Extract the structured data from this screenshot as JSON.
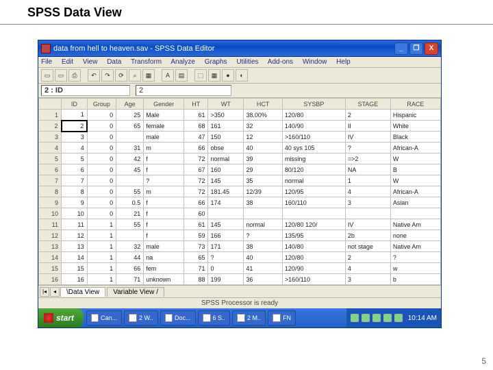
{
  "slide": {
    "title": "SPSS Data View",
    "page_number": "5"
  },
  "window": {
    "title": "data from hell to heaven.sav - SPSS Data Editor",
    "min_label": "_",
    "max_label": "❐",
    "close_label": "X"
  },
  "menu": {
    "items": [
      "File",
      "Edit",
      "View",
      "Data",
      "Transform",
      "Analyze",
      "Graphs",
      "Utilities",
      "Add-ons",
      "Window",
      "Help"
    ]
  },
  "toolbar": {
    "icons": [
      "▭",
      "▭",
      "⌂",
      "⎙",
      "",
      "↶",
      "↷",
      "⟳",
      "⌕",
      "▦",
      "",
      "A",
      "▤",
      "",
      "⬚",
      "▦",
      "●",
      "◐"
    ]
  },
  "cell_indicator": {
    "ref": "2 : ID",
    "value": "2"
  },
  "grid": {
    "columns": [
      "ID",
      "Group",
      "Age",
      "Gender",
      "HT",
      "WT",
      "HCT",
      "SYSBP",
      "STAGE",
      "RACE"
    ],
    "rows": [
      {
        "n": "1",
        "id": "1",
        "group": "0",
        "age": "25",
        "gender": "Male",
        "ht": "61",
        "wt": ">350",
        "hct": "38.00%",
        "sysbp": "120/80",
        "stage": "2",
        "race": "Hispanic"
      },
      {
        "n": "2",
        "id": "2",
        "group": "0",
        "age": "65",
        "gender": "female",
        "ht": "68",
        "wt": "161",
        "hct": "32",
        "sysbp": "140/90",
        "stage": "II",
        "race": "White"
      },
      {
        "n": "3",
        "id": "3",
        "group": "0",
        "age": "",
        "gender": "male",
        "ht": "47",
        "wt": "150",
        "hct": "12",
        "sysbp": ">160/110",
        "stage": "IV",
        "race": "Black"
      },
      {
        "n": "4",
        "id": "4",
        "group": "0",
        "age": "31",
        "gender": "m",
        "ht": "66",
        "wt": "obse",
        "hct": "40",
        "sysbp": "40 sys 105",
        "stage": "?",
        "race": "African-A"
      },
      {
        "n": "5",
        "id": "5",
        "group": "0",
        "age": "42",
        "gender": "f",
        "ht": "72",
        "wt": "normal",
        "hct": "39",
        "sysbp": "missing",
        "stage": "=>2",
        "race": "W"
      },
      {
        "n": "6",
        "id": "6",
        "group": "0",
        "age": "45",
        "gender": "f",
        "ht": "67",
        "wt": "160",
        "hct": "29",
        "sysbp": "80/120",
        "stage": "NA",
        "race": "B"
      },
      {
        "n": "7",
        "id": "7",
        "group": "0",
        "age": "",
        "gender": "?",
        "ht": "72",
        "wt": "145",
        "hct": "35",
        "sysbp": "normal",
        "stage": "1",
        "race": "W"
      },
      {
        "n": "8",
        "id": "8",
        "group": "0",
        "age": "55",
        "gender": "m",
        "ht": "72",
        "wt": "181.45",
        "hct": "12/39",
        "sysbp": "120/95",
        "stage": "4",
        "race": "African-A"
      },
      {
        "n": "9",
        "id": "9",
        "group": "0",
        "age": "0.5",
        "gender": "f",
        "ht": "66",
        "wt": "174",
        "hct": "38",
        "sysbp": "160/110",
        "stage": "3",
        "race": "Asian"
      },
      {
        "n": "10",
        "id": "10",
        "group": "0",
        "age": "21",
        "gender": "f",
        "ht": "60",
        "wt": "",
        "hct": "",
        "sysbp": "",
        "stage": "",
        "race": ""
      },
      {
        "n": "11",
        "id": "11",
        "group": "1",
        "age": "55",
        "gender": "f",
        "ht": "61",
        "wt": "145",
        "hct": "normal",
        "sysbp": "120/80 120/",
        "stage": "IV",
        "race": "Native Am"
      },
      {
        "n": "12",
        "id": "12",
        "group": "1",
        "age": "",
        "gender": "f",
        "ht": "59",
        "wt": "166",
        "hct": "?",
        "sysbp": "135/95",
        "stage": "2b",
        "race": "none"
      },
      {
        "n": "13",
        "id": "13",
        "group": "1",
        "age": "32",
        "gender": "male",
        "ht": "73",
        "wt": "171",
        "hct": "38",
        "sysbp": "140/80",
        "stage": "not stage",
        "race": "Native Am"
      },
      {
        "n": "14",
        "id": "14",
        "group": "1",
        "age": "44",
        "gender": "na",
        "ht": "65",
        "wt": "?",
        "hct": "40",
        "sysbp": "120/80",
        "stage": "2",
        "race": "?"
      },
      {
        "n": "15",
        "id": "15",
        "group": "1",
        "age": "66",
        "gender": "fem",
        "ht": "71",
        "wt": "0",
        "hct": "41",
        "sysbp": "120/90",
        "stage": "4",
        "race": "w"
      },
      {
        "n": "16",
        "id": "16",
        "group": "1",
        "age": "71",
        "gender": "unknown",
        "ht": "88",
        "wt": "199",
        "hct": "36",
        "sysbp": ">160/110",
        "stage": "3",
        "race": "b"
      }
    ],
    "selected_row": 2,
    "selected_col": "id"
  },
  "tabs": {
    "data_view": "Data View",
    "variable_view": "Variable View"
  },
  "statusbar": {
    "text": "SPSS Processor is ready"
  },
  "taskbar": {
    "start": "start",
    "items": [
      "Can...",
      "2 W..",
      "Doc...",
      "6 S..",
      "2 M..",
      "FN"
    ],
    "clock": "10:14 AM"
  },
  "colors": {
    "titlebar_blue": "#245ec7",
    "xp_chrome": "#ece9d8",
    "close_red": "#d9432f",
    "start_green": "#2c7a1f"
  }
}
